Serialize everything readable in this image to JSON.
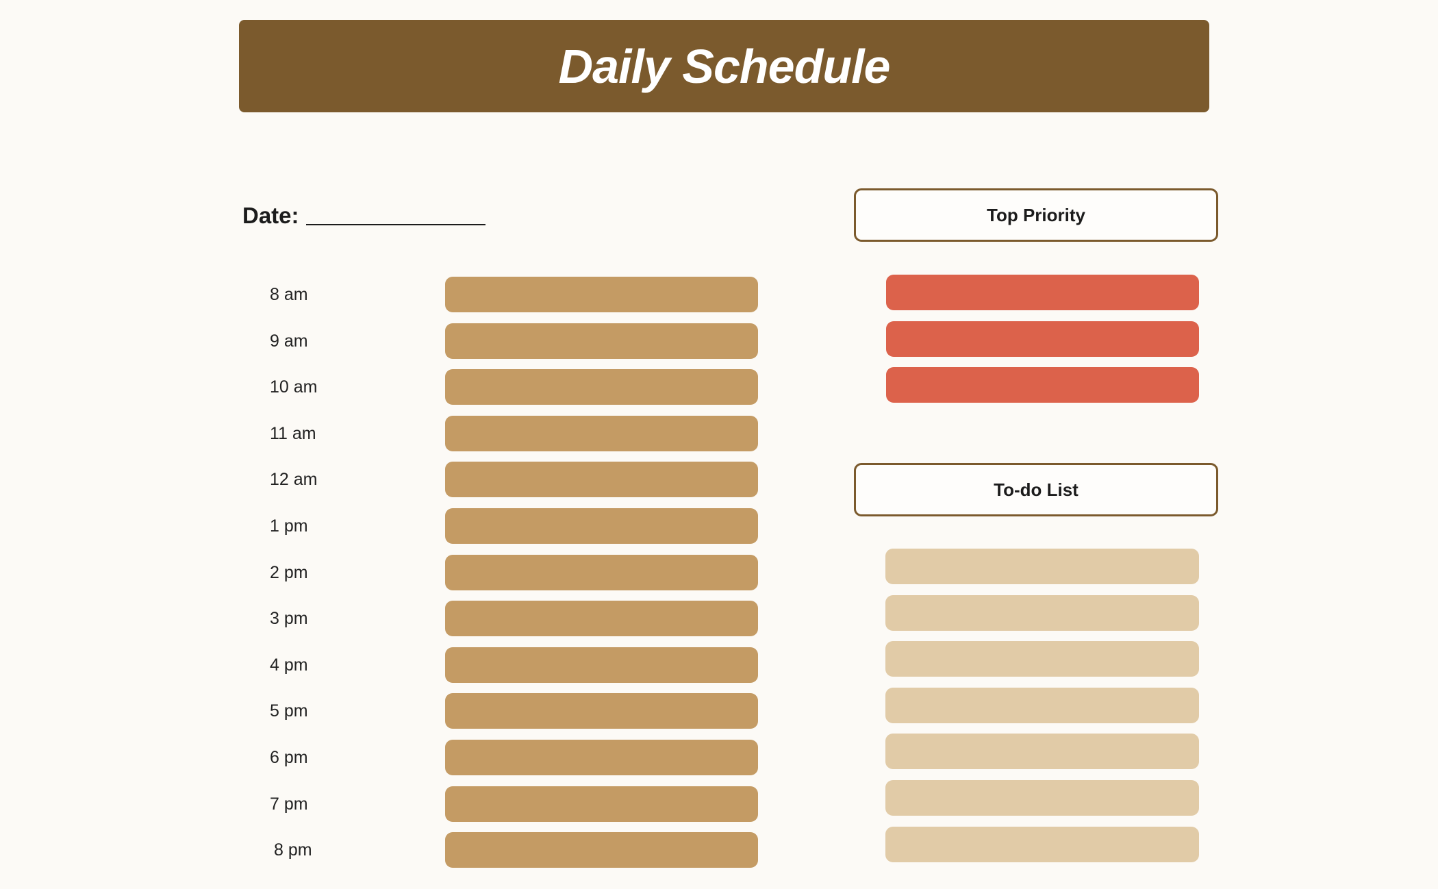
{
  "header": {
    "title": "Daily Schedule"
  },
  "date": {
    "label": "Date:"
  },
  "schedule": {
    "times": [
      "8 am",
      "9 am",
      "10 am",
      "11 am",
      "12 am",
      "1 pm",
      "2 pm",
      "3 pm",
      "4 pm",
      "5 pm",
      "6 pm",
      "7 pm",
      "8 pm"
    ]
  },
  "priority": {
    "title": "Top Priority",
    "count": 3
  },
  "todo": {
    "title": "To-do List",
    "count": 7
  },
  "colors": {
    "header_bg": "#7b5a2d",
    "slot": "#c49b64",
    "priority": "#dc624b",
    "todo": "#e1cba7",
    "background": "#fcfaf6"
  }
}
